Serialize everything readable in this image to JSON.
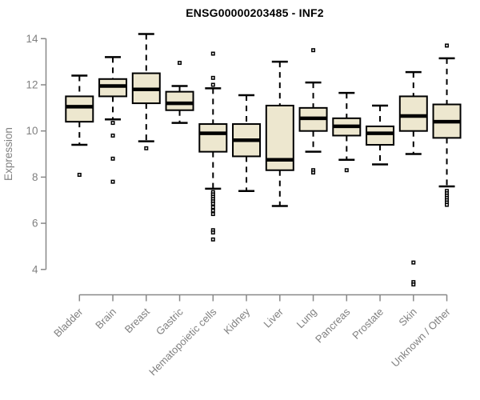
{
  "chart_data": {
    "type": "boxplot",
    "title": "ENSG00000203485 - INF2",
    "ylabel": "Expression",
    "xlabel": "",
    "ylim": [
      4,
      14
    ],
    "yticks": [
      4,
      6,
      8,
      10,
      12,
      14
    ],
    "grid": false,
    "legend": false,
    "categories": [
      "Bladder",
      "Brain",
      "Breast",
      "Gastric",
      "Hematopoietic cells",
      "Kidney",
      "Liver",
      "Lung",
      "Pancreas",
      "Prostate",
      "Skin",
      "Unknown / Other"
    ],
    "boxes": [
      {
        "category": "Bladder",
        "whisker_low": 9.4,
        "q1": 10.4,
        "median": 11.05,
        "q3": 11.5,
        "whisker_high": 12.4,
        "outliers": [
          8.1
        ]
      },
      {
        "category": "Brain",
        "whisker_low": 10.5,
        "q1": 11.5,
        "median": 11.95,
        "q3": 12.25,
        "whisker_high": 13.2,
        "outliers": [
          10.35,
          9.8,
          8.8,
          7.8
        ]
      },
      {
        "category": "Breast",
        "whisker_low": 9.55,
        "q1": 11.2,
        "median": 11.8,
        "q3": 12.5,
        "whisker_high": 14.2,
        "outliers": [
          9.25
        ]
      },
      {
        "category": "Gastric",
        "whisker_low": 10.35,
        "q1": 10.9,
        "median": 11.2,
        "q3": 11.7,
        "whisker_high": 11.95,
        "outliers": [
          12.95
        ]
      },
      {
        "category": "Hematopoietic cells",
        "whisker_low": 7.5,
        "q1": 9.1,
        "median": 9.9,
        "q3": 10.3,
        "whisker_high": 11.85,
        "outliers": [
          13.35,
          12.3,
          12.0,
          7.35,
          7.25,
          7.15,
          7.05,
          6.95,
          6.85,
          6.7,
          6.55,
          6.4,
          5.7,
          5.6,
          5.3
        ]
      },
      {
        "category": "Kidney",
        "whisker_low": 7.4,
        "q1": 8.9,
        "median": 9.6,
        "q3": 10.3,
        "whisker_high": 11.55,
        "outliers": []
      },
      {
        "category": "Liver",
        "whisker_low": 6.75,
        "q1": 8.3,
        "median": 8.75,
        "q3": 11.1,
        "whisker_high": 13.0,
        "outliers": []
      },
      {
        "category": "Lung",
        "whisker_low": 9.1,
        "q1": 10.0,
        "median": 10.55,
        "q3": 11.0,
        "whisker_high": 12.1,
        "outliers": [
          13.5,
          8.3,
          8.2
        ]
      },
      {
        "category": "Pancreas",
        "whisker_low": 8.75,
        "q1": 9.8,
        "median": 10.2,
        "q3": 10.55,
        "whisker_high": 11.65,
        "outliers": [
          8.3
        ]
      },
      {
        "category": "Prostate",
        "whisker_low": 8.55,
        "q1": 9.4,
        "median": 9.9,
        "q3": 10.2,
        "whisker_high": 11.1,
        "outliers": []
      },
      {
        "category": "Skin",
        "whisker_low": 9.0,
        "q1": 10.0,
        "median": 10.65,
        "q3": 11.5,
        "whisker_high": 12.55,
        "outliers": [
          4.3,
          3.45,
          3.35
        ]
      },
      {
        "category": "Unknown / Other",
        "whisker_low": 7.6,
        "q1": 9.7,
        "median": 10.4,
        "q3": 11.15,
        "whisker_high": 13.15,
        "outliers": [
          13.7,
          7.4,
          7.3,
          7.2,
          7.1,
          7.0,
          6.9,
          6.8
        ]
      }
    ],
    "colors": {
      "box_fill": "#EDE7CF",
      "box_border": "#000000",
      "median": "#000000",
      "whisker": "#000000",
      "outlier": "#000000",
      "axis": "#888888",
      "tick_label": "#808080",
      "title": "#000000",
      "background": "#ffffff"
    }
  }
}
